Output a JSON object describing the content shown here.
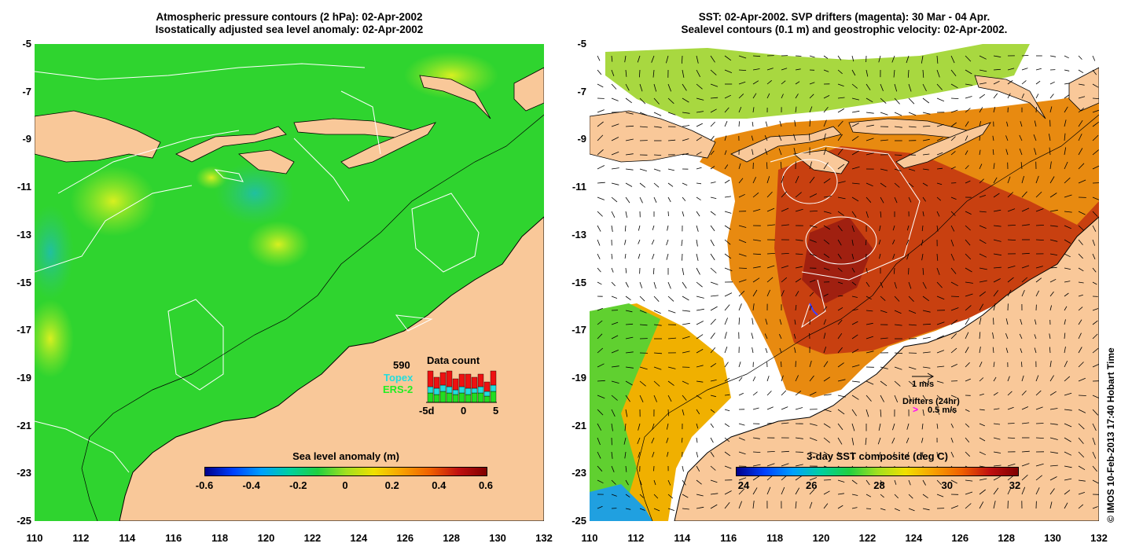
{
  "left_panel": {
    "title_line1": "Atmospheric pressure contours (2 hPa): 02-Apr-2002",
    "title_line2": "Isostatically adjusted sea level anomaly: 02-Apr-2002",
    "colorbar": {
      "label": "Sea level anomaly (m)",
      "ticks": [
        "-0.6",
        "-0.4",
        "-0.2",
        "0",
        "0.2",
        "0.4",
        "0.6"
      ]
    },
    "legend": {
      "count": "590",
      "topex": "Topex",
      "ers2": "ERS-2",
      "data_count_title": "Data count",
      "xticks": [
        "-5d",
        "0",
        "5"
      ],
      "colors": {
        "topex": "#22dddd",
        "ers2": "#22dd22",
        "count": "#dd0000"
      }
    }
  },
  "right_panel": {
    "title_line1": "SST: 02-Apr-2002. SVP drifters (magenta): 30 Mar - 04 Apr.",
    "title_line2": "Sealevel contours (0.1 m) and geostrophic velocity: 02-Apr-2002.",
    "colorbar": {
      "label": "3-day SST composite (deg C)",
      "ticks": [
        "24",
        "26",
        "28",
        "30",
        "32"
      ]
    },
    "legend": {
      "velocity_scale": "1 m/s",
      "drifters_label": "Drifters (24hr)",
      "drifters_speed": "0.5 m/s",
      "drifter_color": "#ff00ff"
    }
  },
  "axes": {
    "y_ticks": [
      "-5",
      "-7",
      "-9",
      "-11",
      "-13",
      "-15",
      "-17",
      "-19",
      "-21",
      "-23",
      "-25"
    ],
    "x_ticks": [
      "110",
      "112",
      "114",
      "116",
      "118",
      "120",
      "122",
      "124",
      "126",
      "128",
      "130",
      "132"
    ]
  },
  "credit": "© IMOS 10-Feb-2013 17:40 Hobart Time",
  "colors": {
    "land": "#f9c899",
    "ocean_green": "#2fd42f",
    "sst_hot": "#c03010"
  }
}
